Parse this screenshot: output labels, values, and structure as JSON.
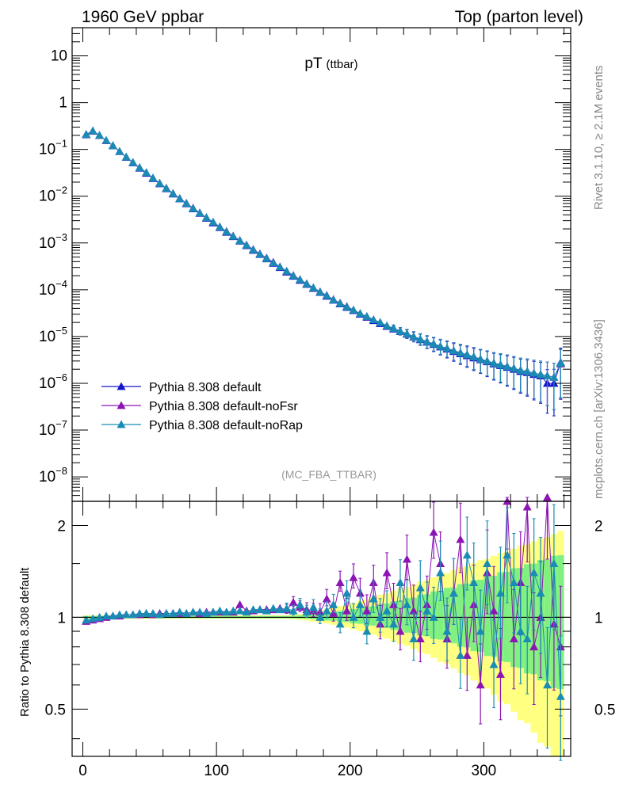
{
  "header": {
    "left": "1960 GeV ppbar",
    "right": "Top (parton level)"
  },
  "title_main": "pT",
  "title_sub": "(ttbar)",
  "analysis_tag": "(MC_FBA_TTBAR)",
  "side_text_1": "Rivet 3.1.10, ≥ 2.1M events",
  "side_text_2": "mcplots.cern.ch [arXiv:1306.3436]",
  "ratio_ylabel": "Ratio to Pythia 8.308 default",
  "colors": {
    "default": "#1414cc",
    "noFsr": "#8c14b4",
    "noRap": "#1a8cb4",
    "band_yellow": "#ffff80",
    "band_green": "#80f080"
  },
  "chart_data": [
    {
      "type": "line",
      "xlim": [
        -8,
        365
      ],
      "ylim": [
        3e-09,
        40
      ],
      "log_y": true,
      "y_tick_labels": [
        "10^-8",
        "10^-7",
        "10^-6",
        "10^-5",
        "10^-4",
        "10^-3",
        "10^-2",
        "10^-1",
        "1",
        "10"
      ],
      "legend_position": "bottom-left",
      "series": [
        {
          "name": "Pythia 8.308 default",
          "x": [
            2.5,
            7.5,
            12.5,
            17.5,
            22.5,
            27.5,
            32.5,
            37.5,
            42.5,
            47.5,
            52.5,
            57.5,
            62.5,
            67.5,
            72.5,
            77.5,
            82.5,
            87.5,
            92.5,
            97.5,
            102.5,
            107.5,
            112.5,
            117.5,
            122.5,
            127.5,
            132.5,
            137.5,
            142.5,
            147.5,
            152.5,
            157.5,
            162.5,
            167.5,
            172.5,
            177.5,
            182.5,
            187.5,
            192.5,
            197.5,
            202.5,
            207.5,
            212.5,
            217.5,
            222.5,
            227.5,
            232.5,
            237.5,
            242.5,
            247.5,
            252.5,
            257.5,
            262.5,
            267.5,
            272.5,
            277.5,
            282.5,
            287.5,
            292.5,
            297.5,
            302.5,
            307.5,
            312.5,
            317.5,
            322.5,
            327.5,
            332.5,
            337.5,
            342.5,
            347.5,
            352.5,
            357.5
          ],
          "y": [
            0.21,
            0.25,
            0.2,
            0.155,
            0.12,
            0.09,
            0.068,
            0.052,
            0.04,
            0.031,
            0.024,
            0.0185,
            0.0145,
            0.0112,
            0.0088,
            0.0069,
            0.0054,
            0.0043,
            0.0034,
            0.0027,
            0.00215,
            0.0017,
            0.00137,
            0.0011,
            0.00088,
            0.0007,
            0.00057,
            0.00046,
            0.00037,
            0.0003,
            0.00024,
            0.000195,
            0.00016,
            0.000131,
            0.000107,
            8.8e-05,
            7.3e-05,
            6e-05,
            5e-05,
            4.2e-05,
            3.6e-05,
            3e-05,
            2.6e-05,
            2.2e-05,
            1.9e-05,
            1.65e-05,
            1.45e-05,
            1.28e-05,
            1.12e-05,
            9.8e-06,
            8.6e-06,
            7.6e-06,
            6.8e-06,
            6e-06,
            5.4e-06,
            4.8e-06,
            4.3e-06,
            3.9e-06,
            3.5e-06,
            3.2e-06,
            2.9e-06,
            2.6e-06,
            2.4e-06,
            2.2e-06,
            2e-06,
            1.8e-06,
            1.7e-06,
            1.55e-06,
            1.45e-06,
            1e-06,
            1e-06,
            2.8e-06
          ]
        },
        {
          "name": "Pythia 8.308 default-noFsr",
          "x": [
            2.5,
            7.5,
            12.5,
            17.5,
            22.5,
            27.5,
            32.5,
            37.5,
            42.5,
            47.5,
            52.5,
            57.5,
            62.5,
            67.5,
            72.5,
            77.5,
            82.5,
            87.5,
            92.5,
            97.5,
            102.5,
            107.5,
            112.5,
            117.5,
            122.5,
            127.5,
            132.5,
            137.5,
            142.5,
            147.5,
            152.5,
            157.5,
            162.5,
            167.5,
            172.5,
            177.5,
            182.5,
            187.5,
            192.5,
            197.5,
            202.5,
            207.5,
            212.5,
            217.5,
            222.5,
            227.5,
            232.5,
            237.5,
            242.5,
            247.5,
            252.5,
            257.5,
            262.5,
            267.5,
            272.5,
            277.5,
            282.5,
            287.5,
            292.5,
            297.5,
            302.5,
            307.5,
            312.5,
            317.5,
            322.5,
            327.5,
            332.5,
            337.5,
            342.5,
            347.5,
            352.5,
            357.5
          ],
          "y": [
            0.205,
            0.245,
            0.198,
            0.154,
            0.121,
            0.091,
            0.069,
            0.053,
            0.041,
            0.032,
            0.0245,
            0.019,
            0.0149,
            0.0115,
            0.009,
            0.0071,
            0.0056,
            0.0044,
            0.0035,
            0.0028,
            0.00222,
            0.00177,
            0.00142,
            0.00114,
            0.00091,
            0.00073,
            0.00059,
            0.00048,
            0.00039,
            0.00031,
            0.00025,
            0.000203,
            0.000166,
            0.000135,
            0.000111,
            9.1e-05,
            7.6e-05,
            6.2e-05,
            5.2e-05,
            4.4e-05,
            3.7e-05,
            3.1e-05,
            2.7e-05,
            2.3e-05,
            2e-05,
            1.7e-05,
            1.5e-05,
            1.3e-05,
            1.15e-05,
            1e-05,
            8.8e-06,
            7.8e-06,
            7e-06,
            6.2e-06,
            5.6e-06,
            5e-06,
            4.5e-06,
            4.1e-06,
            3.7e-06,
            3.3e-06,
            3e-06,
            2.7e-06,
            2.5e-06,
            2.3e-06,
            2.1e-06,
            1.9e-06,
            1.8e-06,
            1.65e-06,
            1.55e-06,
            1.45e-06,
            1.35e-06,
            2.6e-06
          ]
        },
        {
          "name": "Pythia 8.308 default-noRap",
          "x": [
            2.5,
            7.5,
            12.5,
            17.5,
            22.5,
            27.5,
            32.5,
            37.5,
            42.5,
            47.5,
            52.5,
            57.5,
            62.5,
            67.5,
            72.5,
            77.5,
            82.5,
            87.5,
            92.5,
            97.5,
            102.5,
            107.5,
            112.5,
            117.5,
            122.5,
            127.5,
            132.5,
            137.5,
            142.5,
            147.5,
            152.5,
            157.5,
            162.5,
            167.5,
            172.5,
            177.5,
            182.5,
            187.5,
            192.5,
            197.5,
            202.5,
            207.5,
            212.5,
            217.5,
            222.5,
            227.5,
            232.5,
            237.5,
            242.5,
            247.5,
            252.5,
            257.5,
            262.5,
            267.5,
            272.5,
            277.5,
            282.5,
            287.5,
            292.5,
            297.5,
            302.5,
            307.5,
            312.5,
            317.5,
            322.5,
            327.5,
            332.5,
            337.5,
            342.5,
            347.5,
            352.5,
            357.5
          ],
          "y": [
            0.208,
            0.248,
            0.2,
            0.156,
            0.121,
            0.091,
            0.069,
            0.053,
            0.041,
            0.032,
            0.0246,
            0.0189,
            0.0148,
            0.0114,
            0.0089,
            0.007,
            0.0055,
            0.0044,
            0.0035,
            0.0028,
            0.0022,
            0.00175,
            0.0014,
            0.00112,
            0.0009,
            0.00072,
            0.00058,
            0.00047,
            0.00038,
            0.00031,
            0.00025,
            0.0002,
            0.000165,
            0.000134,
            0.00011,
            9e-05,
            7.5e-05,
            6.1e-05,
            5.1e-05,
            4.3e-05,
            3.7e-05,
            3.1e-05,
            2.7e-05,
            2.3e-05,
            2e-05,
            1.7e-05,
            1.5e-05,
            1.3e-05,
            1.15e-05,
            1e-05,
            8.8e-06,
            7.8e-06,
            7e-06,
            6.2e-06,
            5.6e-06,
            5e-06,
            4.5e-06,
            4.1e-06,
            3.7e-06,
            3.3e-06,
            3e-06,
            2.7e-06,
            2.5e-06,
            2.3e-06,
            2.1e-06,
            1.9e-06,
            1.8e-06,
            1.65e-06,
            1.55e-06,
            1.45e-06,
            1.35e-06,
            2.7e-06
          ]
        }
      ]
    },
    {
      "type": "line",
      "xlim": [
        -8,
        365
      ],
      "ylim": [
        0.35,
        2.4
      ],
      "log_y": true,
      "y_tick_labels": [
        "0.5",
        "1",
        "2"
      ],
      "x_tick_labels": [
        "0",
        "100",
        "200",
        "300"
      ],
      "series": [
        {
          "name": "Pythia 8.308 default-noFsr",
          "x": [
            2.5,
            7.5,
            12.5,
            17.5,
            22.5,
            27.5,
            32.5,
            37.5,
            42.5,
            47.5,
            52.5,
            57.5,
            62.5,
            67.5,
            72.5,
            77.5,
            82.5,
            87.5,
            92.5,
            97.5,
            102.5,
            107.5,
            112.5,
            117.5,
            122.5,
            127.5,
            132.5,
            137.5,
            142.5,
            147.5,
            152.5,
            157.5,
            162.5,
            167.5,
            172.5,
            177.5,
            182.5,
            187.5,
            192.5,
            197.5,
            202.5,
            207.5,
            212.5,
            217.5,
            222.5,
            227.5,
            232.5,
            237.5,
            242.5,
            247.5,
            252.5,
            257.5,
            262.5,
            267.5,
            272.5,
            277.5,
            282.5,
            287.5,
            292.5,
            297.5,
            302.5,
            307.5,
            312.5,
            317.5,
            322.5,
            327.5,
            332.5,
            337.5,
            342.5,
            347.5,
            352.5,
            357.5
          ],
          "y": [
            0.97,
            0.98,
            0.99,
            1.0,
            1.01,
            1.01,
            1.02,
            1.02,
            1.02,
            1.03,
            1.02,
            1.03,
            1.03,
            1.03,
            1.03,
            1.03,
            1.04,
            1.03,
            1.04,
            1.04,
            1.04,
            1.04,
            1.04,
            1.1,
            1.05,
            1.05,
            1.06,
            1.06,
            1.06,
            1.07,
            1.06,
            1.12,
            1.08,
            1.06,
            1.05,
            1.04,
            1.15,
            1.03,
            1.3,
            1.05,
            1.35,
            1.2,
            1.05,
            1.3,
            0.95,
            1.4,
            1.1,
            0.9,
            1.55,
            1.05,
            0.85,
            1.1,
            1.9,
            1.5,
            0.85,
            1.2,
            1.8,
            0.75,
            1.1,
            0.6,
            1.4,
            1.05,
            0.65,
            2.4,
            0.85,
            1.3,
            2.3,
            0.8,
            1.0,
            2.5,
            0.95,
            0.8
          ]
        },
        {
          "name": "Pythia 8.308 default-noRap",
          "x": [
            2.5,
            7.5,
            12.5,
            17.5,
            22.5,
            27.5,
            32.5,
            37.5,
            42.5,
            47.5,
            52.5,
            57.5,
            62.5,
            67.5,
            72.5,
            77.5,
            82.5,
            87.5,
            92.5,
            97.5,
            102.5,
            107.5,
            112.5,
            117.5,
            122.5,
            127.5,
            132.5,
            137.5,
            142.5,
            147.5,
            152.5,
            157.5,
            162.5,
            167.5,
            172.5,
            177.5,
            182.5,
            187.5,
            192.5,
            197.5,
            202.5,
            207.5,
            212.5,
            217.5,
            222.5,
            227.5,
            232.5,
            237.5,
            242.5,
            247.5,
            252.5,
            257.5,
            262.5,
            267.5,
            272.5,
            277.5,
            282.5,
            287.5,
            292.5,
            297.5,
            302.5,
            307.5,
            312.5,
            317.5,
            322.5,
            327.5,
            332.5,
            337.5,
            342.5,
            347.5,
            352.5,
            357.5
          ],
          "y": [
            0.98,
            0.99,
            1.0,
            1.01,
            1.01,
            1.02,
            1.02,
            1.02,
            1.03,
            1.03,
            1.03,
            1.02,
            1.03,
            1.03,
            1.04,
            1.03,
            1.04,
            1.04,
            1.03,
            1.04,
            1.05,
            1.04,
            1.05,
            1.05,
            1.04,
            1.06,
            1.06,
            1.05,
            1.07,
            1.06,
            1.07,
            1.05,
            1.1,
            1.04,
            1.08,
            1.0,
            1.05,
            1.1,
            0.95,
            1.2,
            1.0,
            1.1,
            0.9,
            1.15,
            1.0,
            1.05,
            0.95,
            1.3,
            1.1,
            0.85,
            1.25,
            1.05,
            1.0,
            1.4,
            0.9,
            1.2,
            0.75,
            1.6,
            1.3,
            0.9,
            1.5,
            0.7,
            1.2,
            1.6,
            1.3,
            0.9,
            0.85,
            1.4,
            1.2,
            0.6,
            1.5,
            0.55
          ]
        }
      ]
    }
  ]
}
